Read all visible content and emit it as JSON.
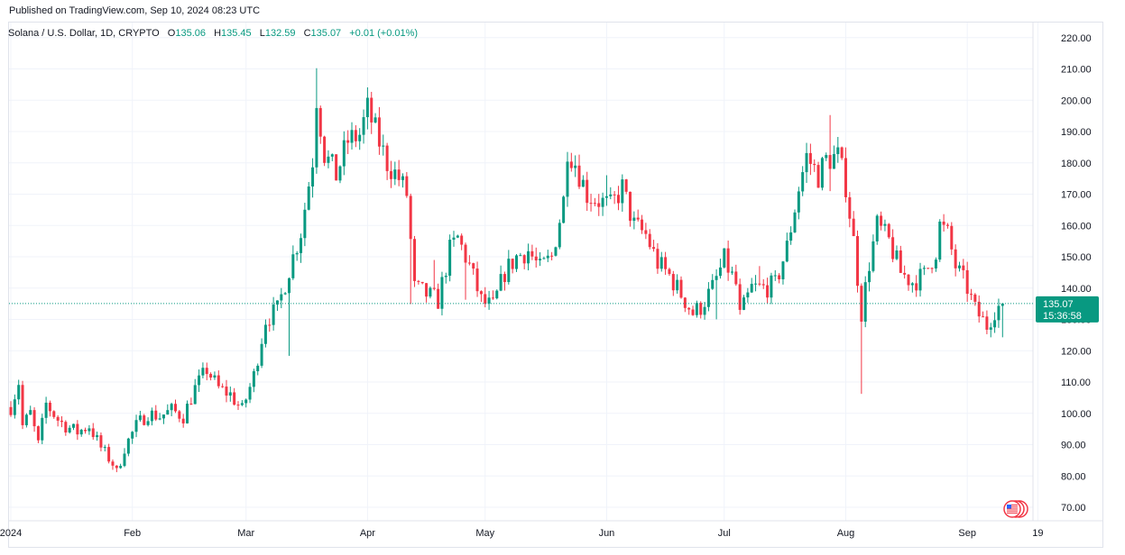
{
  "header": {
    "published": "Published on TradingView.com, Sep 10, 2024 08:23 UTC"
  },
  "legend": {
    "symbol": "Solana / U.S. Dollar, 1D, CRYPTO",
    "o_label": "O",
    "o_value": "135.06",
    "h_label": "H",
    "h_value": "135.45",
    "l_label": "L",
    "l_value": "132.59",
    "c_label": "C",
    "c_value": "135.07",
    "change": "+0.01 (+0.01%)"
  },
  "price_tag": {
    "price": "135.07",
    "countdown": "15:36:58"
  },
  "colors": {
    "up": "#089981",
    "down": "#f23645",
    "grid": "#f0f3fa",
    "axis_text": "#131722"
  },
  "icons": {
    "flag": "us-flag-icon"
  },
  "chart_data": {
    "type": "candlestick",
    "title": "",
    "xlabel": "",
    "ylabel": "",
    "ylim": [
      65,
      225
    ],
    "y_ticks": [
      "220.00",
      "210.00",
      "200.00",
      "190.00",
      "180.00",
      "170.00",
      "160.00",
      "150.00",
      "140.00",
      "130.00",
      "120.00",
      "110.00",
      "100.00",
      "90.00",
      "80.00",
      "70.00"
    ],
    "x_ticks": [
      {
        "label": "2024",
        "date": "2024-01-01"
      },
      {
        "label": "Feb",
        "date": "2024-02-01"
      },
      {
        "label": "Mar",
        "date": "2024-03-01"
      },
      {
        "label": "Apr",
        "date": "2024-04-01"
      },
      {
        "label": "May",
        "date": "2024-05-01"
      },
      {
        "label": "Jun",
        "date": "2024-06-01"
      },
      {
        "label": "Jul",
        "date": "2024-07-01"
      },
      {
        "label": "Aug",
        "date": "2024-08-01"
      },
      {
        "label": "Sep",
        "date": "2024-09-01"
      },
      {
        "label": "19",
        "date": "2024-09-19"
      }
    ],
    "last_price": 135.07,
    "close_path": [
      [
        "2024-01-01",
        102
      ],
      [
        "2024-01-03",
        110
      ],
      [
        "2024-01-04",
        96
      ],
      [
        "2024-01-06",
        100
      ],
      [
        "2024-01-08",
        90
      ],
      [
        "2024-01-10",
        103
      ],
      [
        "2024-01-13",
        98
      ],
      [
        "2024-01-15",
        96
      ],
      [
        "2024-01-18",
        94
      ],
      [
        "2024-01-21",
        96
      ],
      [
        "2024-01-24",
        89
      ],
      [
        "2024-01-27",
        84
      ],
      [
        "2024-01-28",
        81
      ],
      [
        "2024-01-30",
        89
      ],
      [
        "2024-02-02",
        96
      ],
      [
        "2024-02-05",
        100
      ],
      [
        "2024-02-08",
        99
      ],
      [
        "2024-02-11",
        101
      ],
      [
        "2024-02-14",
        99
      ],
      [
        "2024-02-17",
        108
      ],
      [
        "2024-02-20",
        114
      ],
      [
        "2024-02-23",
        108
      ],
      [
        "2024-02-26",
        106
      ],
      [
        "2024-02-29",
        101
      ],
      [
        "2024-03-03",
        112
      ],
      [
        "2024-03-06",
        130
      ],
      [
        "2024-03-09",
        133
      ],
      [
        "2024-03-12",
        146
      ],
      [
        "2024-03-15",
        158
      ],
      [
        "2024-03-18",
        181
      ],
      [
        "2024-03-19",
        201
      ],
      [
        "2024-03-21",
        183
      ],
      [
        "2024-03-24",
        176
      ],
      [
        "2024-03-27",
        187
      ],
      [
        "2024-03-30",
        189
      ],
      [
        "2024-04-01",
        197
      ],
      [
        "2024-04-03",
        190
      ],
      [
        "2024-04-06",
        180
      ],
      [
        "2024-04-09",
        175
      ],
      [
        "2024-04-11",
        170
      ],
      [
        "2024-04-13",
        140
      ],
      [
        "2024-04-16",
        138
      ],
      [
        "2024-04-19",
        136
      ],
      [
        "2024-04-22",
        152
      ],
      [
        "2024-04-24",
        156
      ],
      [
        "2024-04-27",
        147
      ],
      [
        "2024-04-30",
        136
      ],
      [
        "2024-05-01",
        135
      ],
      [
        "2024-05-03",
        134
      ],
      [
        "2024-05-06",
        145
      ],
      [
        "2024-05-09",
        150
      ],
      [
        "2024-05-12",
        152
      ],
      [
        "2024-05-15",
        146
      ],
      [
        "2024-05-18",
        150
      ],
      [
        "2024-05-21",
        168
      ],
      [
        "2024-05-22",
        185
      ],
      [
        "2024-05-24",
        180
      ],
      [
        "2024-05-27",
        170
      ],
      [
        "2024-05-30",
        168
      ],
      [
        "2024-06-02",
        166
      ],
      [
        "2024-06-05",
        172
      ],
      [
        "2024-06-08",
        160
      ],
      [
        "2024-06-11",
        157
      ],
      [
        "2024-06-14",
        148
      ],
      [
        "2024-06-17",
        144
      ],
      [
        "2024-06-20",
        138
      ],
      [
        "2024-06-23",
        132
      ],
      [
        "2024-06-25",
        134
      ],
      [
        "2024-06-28",
        140
      ],
      [
        "2024-07-01",
        149
      ],
      [
        "2024-07-04",
        141
      ],
      [
        "2024-07-05",
        131
      ],
      [
        "2024-07-08",
        140
      ],
      [
        "2024-07-11",
        140
      ],
      [
        "2024-07-14",
        141
      ],
      [
        "2024-07-17",
        153
      ],
      [
        "2024-07-20",
        172
      ],
      [
        "2024-07-22",
        182
      ],
      [
        "2024-07-25",
        176
      ],
      [
        "2024-07-27",
        181
      ],
      [
        "2024-07-30",
        182
      ],
      [
        "2024-08-01",
        173
      ],
      [
        "2024-08-03",
        155
      ],
      [
        "2024-08-05",
        132
      ],
      [
        "2024-08-07",
        148
      ],
      [
        "2024-08-09",
        160
      ],
      [
        "2024-08-12",
        155
      ],
      [
        "2024-08-15",
        145
      ],
      [
        "2024-08-18",
        142
      ],
      [
        "2024-08-21",
        144
      ],
      [
        "2024-08-24",
        152
      ],
      [
        "2024-08-25",
        160
      ],
      [
        "2024-08-27",
        157
      ],
      [
        "2024-08-29",
        147
      ],
      [
        "2024-09-01",
        140
      ],
      [
        "2024-09-03",
        133
      ],
      [
        "2024-09-06",
        128
      ],
      [
        "2024-09-08",
        133
      ],
      [
        "2024-09-10",
        135
      ]
    ]
  }
}
